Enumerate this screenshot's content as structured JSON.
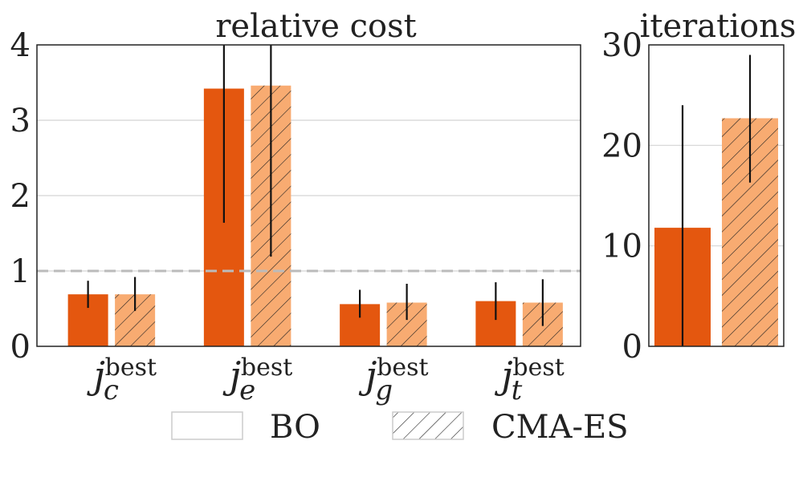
{
  "chart_data": [
    {
      "type": "bar",
      "title": "relative cost",
      "categories": [
        "c",
        "e",
        "g",
        "t"
      ],
      "category_label_base": "j",
      "category_label_superscript": "best",
      "series": [
        {
          "name": "BO",
          "values": [
            0.69,
            3.42,
            0.56,
            0.6
          ],
          "err_low": [
            0.51,
            1.64,
            0.38,
            0.35
          ],
          "err_high": [
            0.87,
            4.0,
            0.75,
            0.85
          ],
          "color": "#e4570f",
          "hatch": false
        },
        {
          "name": "CMA-ES",
          "values": [
            0.69,
            3.46,
            0.58,
            0.58
          ],
          "err_low": [
            0.47,
            1.19,
            0.35,
            0.27
          ],
          "err_high": [
            0.92,
            4.0,
            0.83,
            0.89
          ],
          "color": "#f8ab71",
          "hatch": true
        }
      ],
      "ylim": [
        0,
        4
      ],
      "yticks": [
        "0",
        "1",
        "2",
        "3",
        "4"
      ],
      "reference_line": 1,
      "grid": true
    },
    {
      "type": "bar",
      "title": "iterations",
      "series": [
        {
          "name": "BO",
          "value": 11.8,
          "err_low": 0,
          "err_high": 24.0,
          "color": "#e4570f",
          "hatch": false
        },
        {
          "name": "CMA-ES",
          "value": 22.7,
          "err_low": 16.3,
          "err_high": 29.0,
          "color": "#f8ab71",
          "hatch": true
        }
      ],
      "ylim": [
        0,
        30
      ],
      "yticks": [
        "0",
        "10",
        "20",
        "30"
      ],
      "grid": true
    }
  ],
  "legend": {
    "placement": "bottom",
    "items": [
      {
        "label": "BO",
        "hatch": false
      },
      {
        "label": "CMA-ES",
        "hatch": true
      }
    ]
  }
}
